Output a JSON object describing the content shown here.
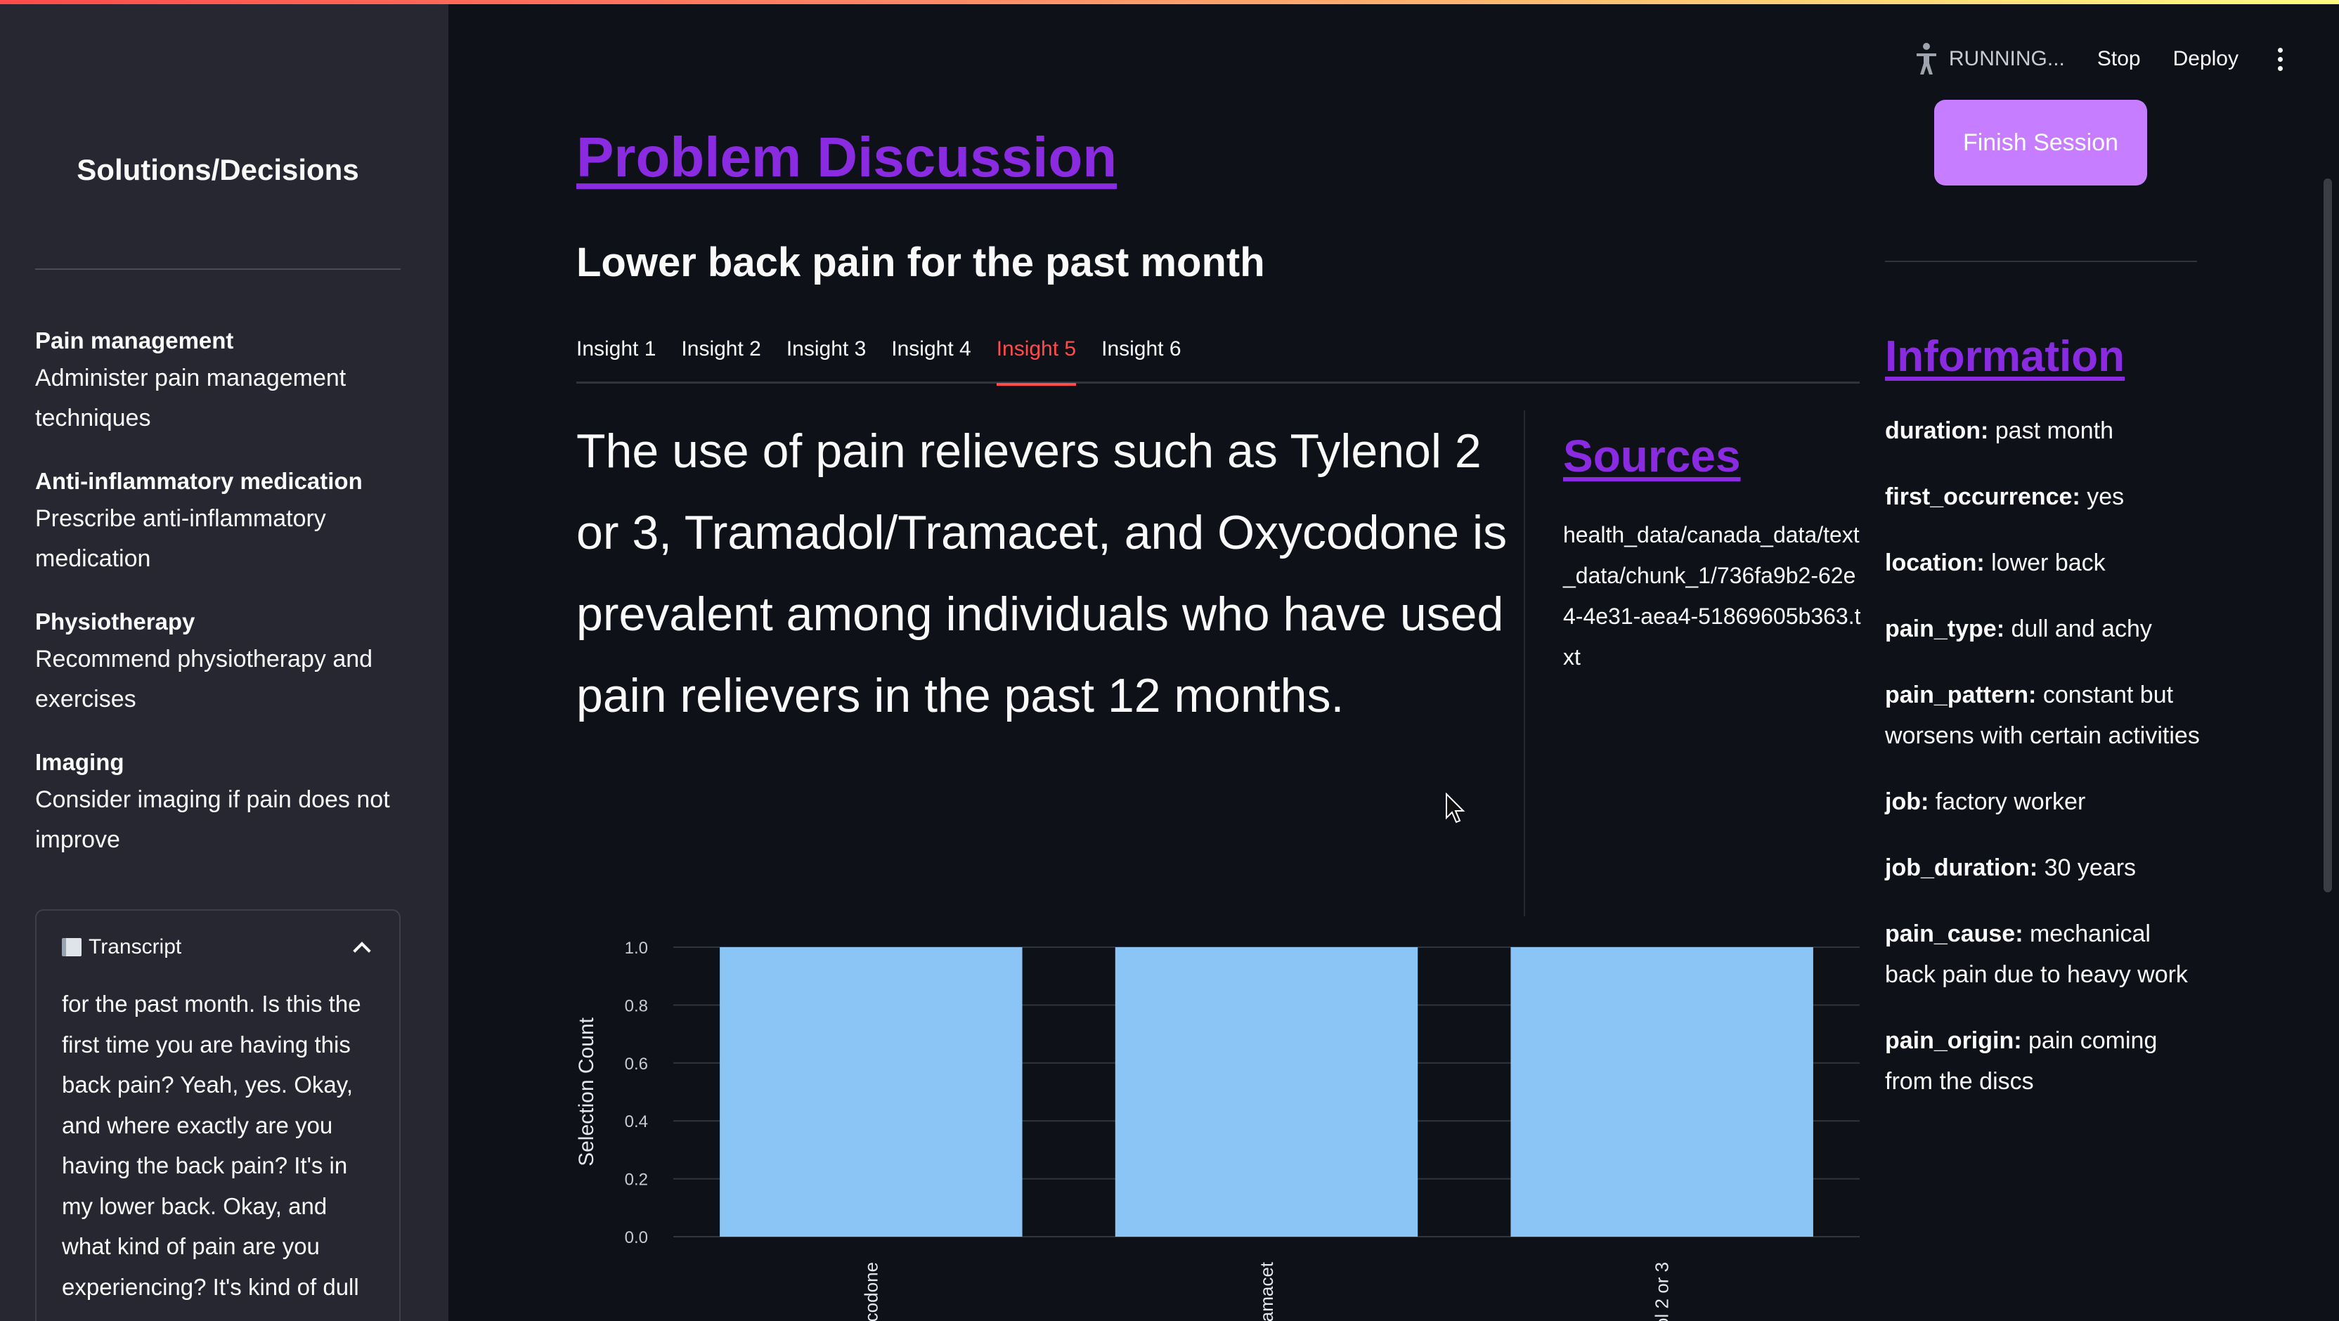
{
  "sidebar": {
    "title": "Solutions/Decisions",
    "items": [
      {
        "title": "Pain management",
        "description": "Administer pain management techniques"
      },
      {
        "title": "Anti-inflammatory medication",
        "description": "Prescribe anti-inflammatory medication"
      },
      {
        "title": "Physiotherapy",
        "description": "Recommend physiotherapy and exercises"
      },
      {
        "title": "Imaging",
        "description": "Consider imaging if pain does not improve"
      }
    ],
    "transcript": {
      "icon": "notebook-icon",
      "label": "Transcript",
      "text": "for the past month. Is this the first time you are having this back pain? Yeah, yes. Okay, and where exactly are you having the back pain? It's in my lower back. Okay, and what kind of pain are you experiencing? It's kind of dull"
    }
  },
  "header": {
    "status": "RUNNING...",
    "stop_label": "Stop",
    "deploy_label": "Deploy",
    "finish_label": "Finish Session"
  },
  "main": {
    "title": "Problem Discussion",
    "subtitle": "Lower back pain for the past month",
    "tabs": [
      "Insight 1",
      "Insight 2",
      "Insight 3",
      "Insight 4",
      "Insight 5",
      "Insight 6"
    ],
    "active_tab": 4,
    "insight_text": "The use of pain relievers such as Tylenol 2 or 3, Tramadol/Tramacet, and Oxycodone is prevalent among individuals who have used pain relievers in the past 12 months.",
    "sources_title": "Sources",
    "source_path": "health_data/canada_data/text_data/chunk_1/736fa9b2-62e4-4e31-aea4-51869605b363.txt"
  },
  "info": {
    "title": "Information",
    "items": [
      {
        "key": "duration:",
        "value": "past month"
      },
      {
        "key": "first_occurrence:",
        "value": "yes"
      },
      {
        "key": "location:",
        "value": "lower back"
      },
      {
        "key": "pain_type:",
        "value": "dull and achy"
      },
      {
        "key": "pain_pattern:",
        "value": "constant but worsens with certain activities"
      },
      {
        "key": "job:",
        "value": "factory worker"
      },
      {
        "key": "job_duration:",
        "value": "30 years"
      },
      {
        "key": "pain_cause:",
        "value": "mechanical back pain due to heavy work"
      },
      {
        "key": "pain_origin:",
        "value": "pain coming from the discs"
      }
    ]
  },
  "chart_data": {
    "type": "bar",
    "categories": [
      "codone",
      "ramacet",
      "ol 2 or 3"
    ],
    "values": [
      1.0,
      1.0,
      1.0
    ],
    "ylabel": "Selection Count",
    "xlabel": "",
    "ylim": [
      0,
      1.0
    ],
    "yticks": [
      "0.0",
      "0.2",
      "0.4",
      "0.6",
      "0.8",
      "1.0"
    ],
    "grid": true,
    "bar_color": "#8ac5f5"
  },
  "colors": {
    "accent_link": "#8a2be2",
    "active_tab": "#ff4b4b",
    "button": "#c77dff",
    "sidebar_bg": "#262730",
    "main_bg": "#0e1117"
  }
}
